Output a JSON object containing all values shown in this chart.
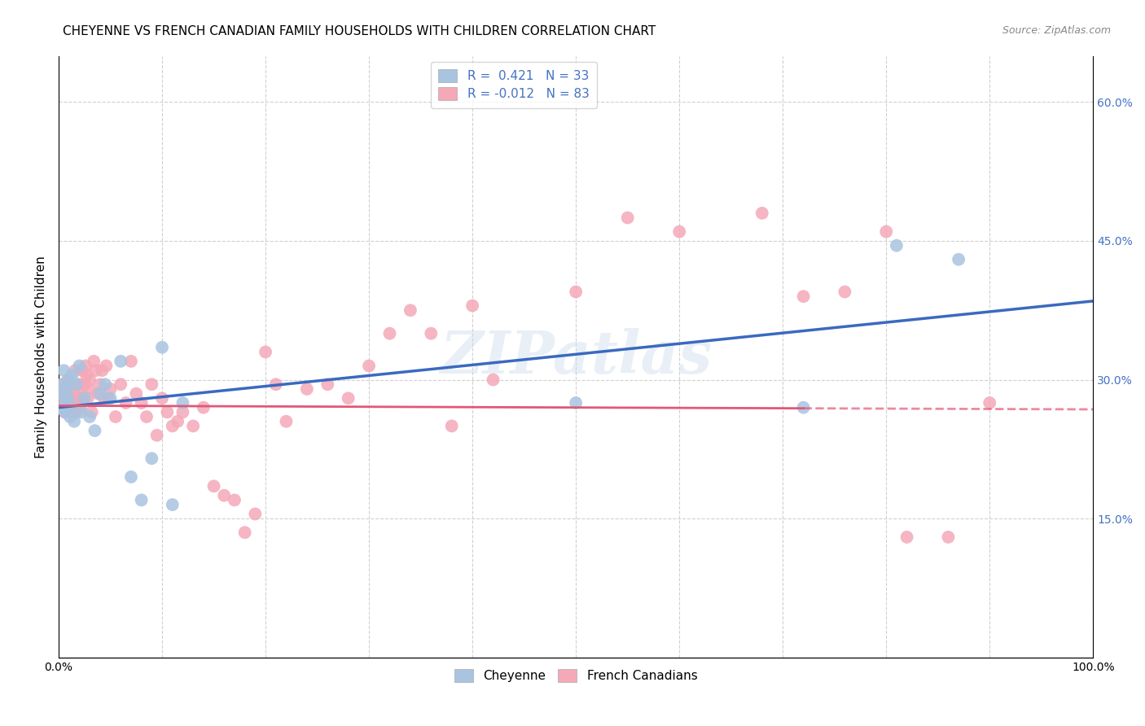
{
  "title": "CHEYENNE VS FRENCH CANADIAN FAMILY HOUSEHOLDS WITH CHILDREN CORRELATION CHART",
  "source": "Source: ZipAtlas.com",
  "ylabel": "Family Households with Children",
  "watermark": "ZIPatlas",
  "cheyenne_R": 0.421,
  "cheyenne_N": 33,
  "french_R": -0.012,
  "french_N": 83,
  "cheyenne_color": "#a8c4e0",
  "french_color": "#f4a8b8",
  "cheyenne_line_color": "#3a6abf",
  "french_line_color": "#e05878",
  "right_axis_color": "#4472c4",
  "cheyenne_x": [
    0.002,
    0.003,
    0.004,
    0.005,
    0.006,
    0.007,
    0.008,
    0.009,
    0.01,
    0.011,
    0.012,
    0.013,
    0.015,
    0.017,
    0.02,
    0.022,
    0.025,
    0.03,
    0.035,
    0.04,
    0.045,
    0.05,
    0.06,
    0.07,
    0.08,
    0.09,
    0.1,
    0.11,
    0.12,
    0.5,
    0.72,
    0.81,
    0.87
  ],
  "cheyenne_y": [
    0.285,
    0.295,
    0.27,
    0.31,
    0.265,
    0.275,
    0.29,
    0.28,
    0.3,
    0.26,
    0.27,
    0.305,
    0.255,
    0.295,
    0.315,
    0.265,
    0.28,
    0.26,
    0.245,
    0.285,
    0.295,
    0.28,
    0.32,
    0.195,
    0.17,
    0.215,
    0.335,
    0.165,
    0.275,
    0.275,
    0.27,
    0.445,
    0.43
  ],
  "french_x": [
    0.002,
    0.003,
    0.004,
    0.005,
    0.006,
    0.007,
    0.008,
    0.009,
    0.01,
    0.011,
    0.012,
    0.013,
    0.014,
    0.015,
    0.016,
    0.017,
    0.018,
    0.019,
    0.02,
    0.021,
    0.022,
    0.023,
    0.024,
    0.025,
    0.026,
    0.027,
    0.028,
    0.029,
    0.03,
    0.032,
    0.034,
    0.036,
    0.038,
    0.04,
    0.042,
    0.044,
    0.046,
    0.048,
    0.05,
    0.055,
    0.06,
    0.065,
    0.07,
    0.075,
    0.08,
    0.085,
    0.09,
    0.095,
    0.1,
    0.105,
    0.11,
    0.115,
    0.12,
    0.13,
    0.14,
    0.15,
    0.16,
    0.17,
    0.18,
    0.19,
    0.2,
    0.21,
    0.22,
    0.24,
    0.26,
    0.28,
    0.3,
    0.32,
    0.34,
    0.36,
    0.38,
    0.4,
    0.42,
    0.5,
    0.55,
    0.6,
    0.68,
    0.72,
    0.76,
    0.8,
    0.82,
    0.86,
    0.9
  ],
  "french_y": [
    0.285,
    0.27,
    0.295,
    0.28,
    0.265,
    0.29,
    0.275,
    0.3,
    0.285,
    0.27,
    0.28,
    0.295,
    0.265,
    0.285,
    0.31,
    0.275,
    0.265,
    0.28,
    0.295,
    0.27,
    0.285,
    0.31,
    0.28,
    0.295,
    0.315,
    0.305,
    0.28,
    0.29,
    0.3,
    0.265,
    0.32,
    0.31,
    0.285,
    0.295,
    0.31,
    0.28,
    0.315,
    0.28,
    0.29,
    0.26,
    0.295,
    0.275,
    0.32,
    0.285,
    0.275,
    0.26,
    0.295,
    0.24,
    0.28,
    0.265,
    0.25,
    0.255,
    0.265,
    0.25,
    0.27,
    0.185,
    0.175,
    0.17,
    0.135,
    0.155,
    0.33,
    0.295,
    0.255,
    0.29,
    0.295,
    0.28,
    0.315,
    0.35,
    0.375,
    0.35,
    0.25,
    0.38,
    0.3,
    0.395,
    0.475,
    0.46,
    0.48,
    0.39,
    0.395,
    0.46,
    0.13,
    0.13,
    0.275
  ],
  "xlim": [
    0.0,
    1.0
  ],
  "ylim": [
    0.0,
    0.65
  ],
  "xticks": [
    0.0,
    0.1,
    0.2,
    0.3,
    0.4,
    0.5,
    0.6,
    0.7,
    0.8,
    0.9,
    1.0
  ],
  "yticks_right": [
    0.0,
    0.15,
    0.3,
    0.45,
    0.6
  ],
  "yticklabels_right": [
    "",
    "15.0%",
    "30.0%",
    "45.0%",
    "60.0%"
  ],
  "background_color": "#ffffff",
  "grid_color": "#d0d0d0",
  "title_fontsize": 11,
  "axis_label_fontsize": 11,
  "tick_fontsize": 10,
  "legend_fontsize": 11,
  "source_fontsize": 9,
  "french_line_solid_end": 0.72,
  "chey_line_start_y": 0.27,
  "chey_line_end_y": 0.385,
  "french_line_start_y": 0.272,
  "french_line_end_y": 0.268
}
